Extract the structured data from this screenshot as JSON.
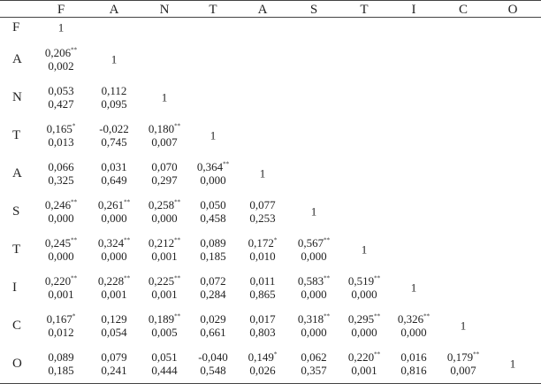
{
  "columns": [
    "F",
    "A",
    "N",
    "T",
    "A",
    "S",
    "T",
    "I",
    "C",
    "O"
  ],
  "rows": [
    {
      "label": "F",
      "cells": []
    },
    {
      "label": "A",
      "cells": [
        {
          "r": "0,206",
          "sig": "**",
          "p": "0,002"
        }
      ]
    },
    {
      "label": "N",
      "cells": [
        {
          "r": "0,053",
          "sig": "",
          "p": "0,427"
        },
        {
          "r": "0,112",
          "sig": "",
          "p": "0,095"
        }
      ]
    },
    {
      "label": "T",
      "cells": [
        {
          "r": "0,165",
          "sig": "*",
          "p": "0,013"
        },
        {
          "r": "-0,022",
          "sig": "",
          "p": "0,745"
        },
        {
          "r": "0,180",
          "sig": "**",
          "p": "0,007"
        }
      ]
    },
    {
      "label": "A",
      "cells": [
        {
          "r": "0,066",
          "sig": "",
          "p": "0,325"
        },
        {
          "r": "0,031",
          "sig": "",
          "p": "0,649"
        },
        {
          "r": "0,070",
          "sig": "",
          "p": "0,297"
        },
        {
          "r": "0,364",
          "sig": "**",
          "p": "0,000"
        }
      ]
    },
    {
      "label": "S",
      "cells": [
        {
          "r": "0,246",
          "sig": "**",
          "p": "0,000"
        },
        {
          "r": "0,261",
          "sig": "**",
          "p": "0,000"
        },
        {
          "r": "0,258",
          "sig": "**",
          "p": "0,000"
        },
        {
          "r": "0,050",
          "sig": "",
          "p": "0,458"
        },
        {
          "r": "0,077",
          "sig": "",
          "p": "0,253"
        }
      ]
    },
    {
      "label": "T",
      "cells": [
        {
          "r": "0,245",
          "sig": "**",
          "p": "0,000"
        },
        {
          "r": "0,324",
          "sig": "**",
          "p": "0,000"
        },
        {
          "r": "0,212",
          "sig": "**",
          "p": "0,001"
        },
        {
          "r": "0,089",
          "sig": "",
          "p": "0,185"
        },
        {
          "r": "0,172",
          "sig": "*",
          "p": "0,010"
        },
        {
          "r": "0,567",
          "sig": "**",
          "p": "0,000"
        }
      ]
    },
    {
      "label": "I",
      "cells": [
        {
          "r": "0,220",
          "sig": "**",
          "p": "0,001"
        },
        {
          "r": "0,228",
          "sig": "**",
          "p": "0,001"
        },
        {
          "r": "0,225",
          "sig": "**",
          "p": "0,001"
        },
        {
          "r": "0,072",
          "sig": "",
          "p": "0,284"
        },
        {
          "r": "0,011",
          "sig": "",
          "p": "0,865"
        },
        {
          "r": "0,583",
          "sig": "**",
          "p": "0,000"
        },
        {
          "r": "0,519",
          "sig": "**",
          "p": "0,000"
        }
      ]
    },
    {
      "label": "C",
      "cells": [
        {
          "r": "0,167",
          "sig": "*",
          "p": "0,012"
        },
        {
          "r": "0,129",
          "sig": "",
          "p": "0,054"
        },
        {
          "r": "0,189",
          "sig": "**",
          "p": "0,005"
        },
        {
          "r": "0,029",
          "sig": "",
          "p": "0,661"
        },
        {
          "r": "0,017",
          "sig": "",
          "p": "0,803"
        },
        {
          "r": "0,318",
          "sig": "**",
          "p": "0,000"
        },
        {
          "r": "0,295",
          "sig": "**",
          "p": "0,000"
        },
        {
          "r": "0,326",
          "sig": "**",
          "p": "0,000"
        }
      ]
    },
    {
      "label": "O",
      "cells": [
        {
          "r": "0,089",
          "sig": "",
          "p": "0,185"
        },
        {
          "r": "0,079",
          "sig": "",
          "p": "0,241"
        },
        {
          "r": "0,051",
          "sig": "",
          "p": "0,444"
        },
        {
          "r": "-0,040",
          "sig": "",
          "p": "0,548"
        },
        {
          "r": "0,149",
          "sig": "*",
          "p": "0,026"
        },
        {
          "r": "0,062",
          "sig": "",
          "p": "0,357"
        },
        {
          "r": "0,220",
          "sig": "**",
          "p": "0,001"
        },
        {
          "r": "0,016",
          "sig": "",
          "p": "0,816"
        },
        {
          "r": "0,179",
          "sig": "**",
          "p": "0,007"
        }
      ]
    }
  ],
  "diagonal_value": "1"
}
